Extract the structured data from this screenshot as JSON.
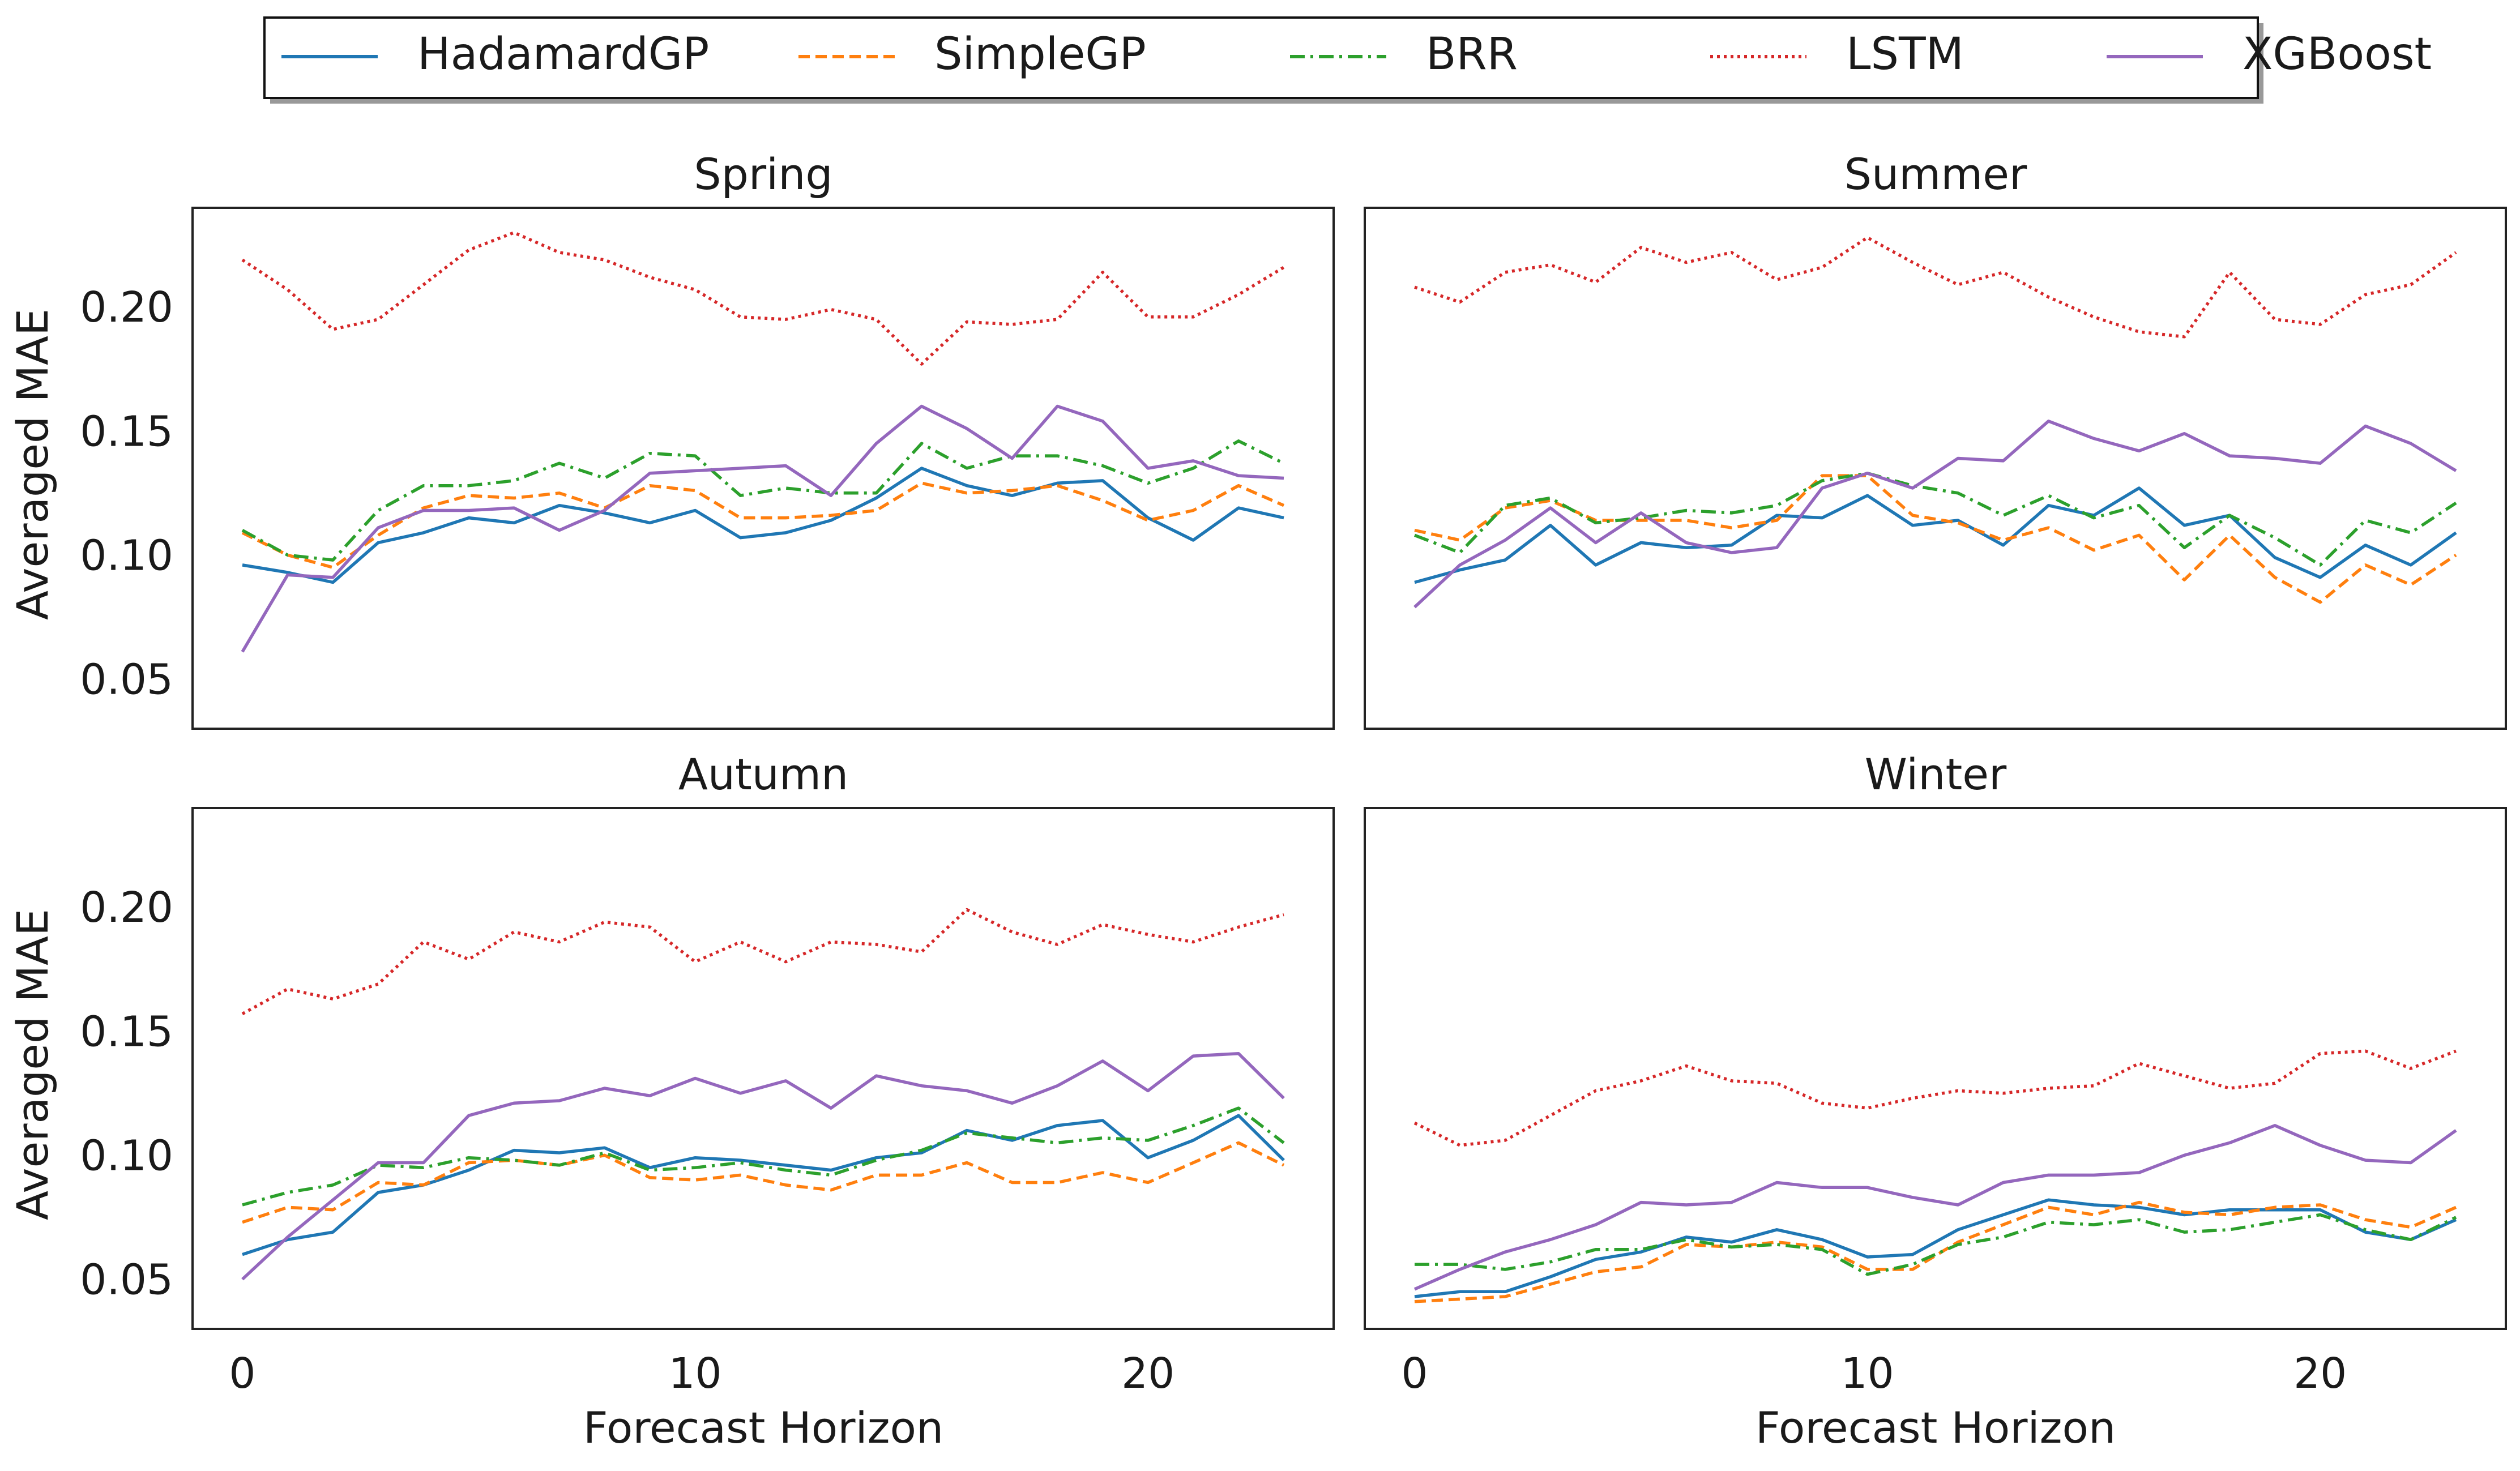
{
  "chart_data": {
    "type": "line",
    "x": [
      0,
      1,
      2,
      3,
      4,
      5,
      6,
      7,
      8,
      9,
      10,
      11,
      12,
      13,
      14,
      15,
      16,
      17,
      18,
      19,
      20,
      21,
      22,
      23
    ],
    "xlim": [
      -1.1,
      24.1
    ],
    "xticks": [
      0,
      10,
      20
    ],
    "ylim": [
      0.03,
      0.24
    ],
    "yticks": [
      0.05,
      0.1,
      0.15,
      0.2
    ],
    "ytick_labels": [
      "0.05",
      "0.10",
      "0.15",
      "0.20"
    ],
    "xlabel": "Forecast Horizon",
    "ylabel": "Averaged MAE",
    "legend_position": "top-center",
    "legend": [
      {
        "name": "HadamardGP",
        "color": "#1f77b4",
        "dash": "solid"
      },
      {
        "name": "SimpleGP",
        "color": "#ff7f0e",
        "dash": "dashed"
      },
      {
        "name": "BRR",
        "color": "#2ca02c",
        "dash": "dashdot"
      },
      {
        "name": "LSTM",
        "color": "#d62728",
        "dash": "dotted"
      },
      {
        "name": "XGBoost",
        "color": "#9467bd",
        "dash": "solid"
      }
    ],
    "panels": [
      {
        "title": "Spring",
        "series": [
          {
            "name": "HadamardGP",
            "values": [
              0.096,
              0.093,
              0.089,
              0.105,
              0.109,
              0.115,
              0.113,
              0.12,
              0.117,
              0.113,
              0.118,
              0.107,
              0.109,
              0.114,
              0.123,
              0.135,
              0.128,
              0.124,
              0.129,
              0.13,
              0.115,
              0.106,
              0.119,
              0.115
            ]
          },
          {
            "name": "SimpleGP",
            "values": [
              0.109,
              0.1,
              0.095,
              0.108,
              0.119,
              0.124,
              0.123,
              0.125,
              0.119,
              0.128,
              0.126,
              0.115,
              0.115,
              0.116,
              0.118,
              0.129,
              0.125,
              0.126,
              0.128,
              0.122,
              0.114,
              0.118,
              0.128,
              0.12
            ]
          },
          {
            "name": "BRR",
            "values": [
              0.11,
              0.1,
              0.098,
              0.118,
              0.128,
              0.128,
              0.13,
              0.137,
              0.131,
              0.141,
              0.14,
              0.124,
              0.127,
              0.125,
              0.125,
              0.145,
              0.135,
              0.14,
              0.14,
              0.136,
              0.129,
              0.135,
              0.146,
              0.137
            ]
          },
          {
            "name": "LSTM",
            "values": [
              0.219,
              0.207,
              0.191,
              0.195,
              0.209,
              0.223,
              0.23,
              0.222,
              0.219,
              0.212,
              0.207,
              0.196,
              0.195,
              0.199,
              0.195,
              0.177,
              0.194,
              0.193,
              0.195,
              0.214,
              0.196,
              0.196,
              0.205,
              0.216
            ]
          },
          {
            "name": "XGBoost",
            "values": [
              0.061,
              0.092,
              0.091,
              0.111,
              0.118,
              0.118,
              0.119,
              0.11,
              0.118,
              0.133,
              0.134,
              0.135,
              0.136,
              0.124,
              0.145,
              0.16,
              0.151,
              0.139,
              0.16,
              0.154,
              0.135,
              0.138,
              0.132,
              0.131
            ]
          }
        ]
      },
      {
        "title": "Summer",
        "series": [
          {
            "name": "HadamardGP",
            "values": [
              0.089,
              0.094,
              0.098,
              0.112,
              0.096,
              0.105,
              0.103,
              0.104,
              0.116,
              0.115,
              0.124,
              0.112,
              0.114,
              0.104,
              0.12,
              0.116,
              0.127,
              0.112,
              0.116,
              0.099,
              0.091,
              0.104,
              0.096,
              0.109
            ]
          },
          {
            "name": "SimpleGP",
            "values": [
              0.11,
              0.106,
              0.119,
              0.122,
              0.114,
              0.114,
              0.114,
              0.111,
              0.114,
              0.132,
              0.132,
              0.116,
              0.113,
              0.106,
              0.111,
              0.102,
              0.108,
              0.09,
              0.108,
              0.091,
              0.081,
              0.096,
              0.088,
              0.1
            ]
          },
          {
            "name": "BRR",
            "values": [
              0.108,
              0.101,
              0.12,
              0.123,
              0.113,
              0.115,
              0.118,
              0.117,
              0.12,
              0.13,
              0.133,
              0.128,
              0.125,
              0.116,
              0.124,
              0.115,
              0.12,
              0.103,
              0.116,
              0.107,
              0.096,
              0.114,
              0.109,
              0.121
            ]
          },
          {
            "name": "LSTM",
            "values": [
              0.208,
              0.202,
              0.214,
              0.217,
              0.21,
              0.224,
              0.218,
              0.222,
              0.211,
              0.216,
              0.228,
              0.218,
              0.209,
              0.214,
              0.204,
              0.196,
              0.19,
              0.188,
              0.214,
              0.195,
              0.193,
              0.205,
              0.209,
              0.222
            ]
          },
          {
            "name": "XGBoost",
            "values": [
              0.079,
              0.096,
              0.106,
              0.119,
              0.105,
              0.117,
              0.105,
              0.101,
              0.103,
              0.127,
              0.133,
              0.127,
              0.139,
              0.138,
              0.154,
              0.147,
              0.142,
              0.149,
              0.14,
              0.139,
              0.137,
              0.152,
              0.145,
              0.134
            ]
          }
        ]
      },
      {
        "title": "Autumn",
        "series": [
          {
            "name": "HadamardGP",
            "values": [
              0.06,
              0.066,
              0.069,
              0.085,
              0.088,
              0.094,
              0.102,
              0.101,
              0.103,
              0.095,
              0.099,
              0.098,
              0.096,
              0.094,
              0.099,
              0.101,
              0.11,
              0.106,
              0.112,
              0.114,
              0.099,
              0.106,
              0.116,
              0.098
            ]
          },
          {
            "name": "SimpleGP",
            "values": [
              0.073,
              0.079,
              0.078,
              0.089,
              0.088,
              0.097,
              0.098,
              0.096,
              0.1,
              0.091,
              0.09,
              0.092,
              0.088,
              0.086,
              0.092,
              0.092,
              0.097,
              0.089,
              0.089,
              0.093,
              0.089,
              0.097,
              0.105,
              0.096
            ]
          },
          {
            "name": "BRR",
            "values": [
              0.08,
              0.085,
              0.088,
              0.096,
              0.095,
              0.099,
              0.098,
              0.096,
              0.101,
              0.094,
              0.095,
              0.097,
              0.094,
              0.092,
              0.098,
              0.102,
              0.109,
              0.107,
              0.105,
              0.107,
              0.106,
              0.112,
              0.119,
              0.105
            ]
          },
          {
            "name": "LSTM",
            "values": [
              0.157,
              0.167,
              0.163,
              0.169,
              0.186,
              0.179,
              0.19,
              0.186,
              0.194,
              0.192,
              0.178,
              0.186,
              0.178,
              0.186,
              0.185,
              0.182,
              0.199,
              0.19,
              0.185,
              0.193,
              0.189,
              0.186,
              0.192,
              0.197
            ]
          },
          {
            "name": "XGBoost",
            "values": [
              0.05,
              0.067,
              0.082,
              0.097,
              0.097,
              0.116,
              0.121,
              0.122,
              0.127,
              0.124,
              0.131,
              0.125,
              0.13,
              0.119,
              0.132,
              0.128,
              0.126,
              0.121,
              0.128,
              0.138,
              0.126,
              0.14,
              0.141,
              0.123
            ]
          }
        ]
      },
      {
        "title": "Winter",
        "series": [
          {
            "name": "HadamardGP",
            "values": [
              0.043,
              0.045,
              0.045,
              0.051,
              0.058,
              0.061,
              0.067,
              0.065,
              0.07,
              0.066,
              0.059,
              0.06,
              0.07,
              0.076,
              0.082,
              0.08,
              0.079,
              0.076,
              0.078,
              0.078,
              0.078,
              0.069,
              0.066,
              0.074
            ]
          },
          {
            "name": "SimpleGP",
            "values": [
              0.041,
              0.042,
              0.043,
              0.048,
              0.053,
              0.055,
              0.064,
              0.063,
              0.065,
              0.063,
              0.054,
              0.054,
              0.065,
              0.072,
              0.079,
              0.076,
              0.081,
              0.077,
              0.076,
              0.079,
              0.08,
              0.074,
              0.071,
              0.079
            ]
          },
          {
            "name": "BRR",
            "values": [
              0.056,
              0.056,
              0.054,
              0.057,
              0.062,
              0.062,
              0.066,
              0.063,
              0.064,
              0.062,
              0.052,
              0.056,
              0.064,
              0.067,
              0.073,
              0.072,
              0.074,
              0.069,
              0.07,
              0.073,
              0.076,
              0.07,
              0.066,
              0.075
            ]
          },
          {
            "name": "LSTM",
            "values": [
              0.113,
              0.104,
              0.106,
              0.116,
              0.126,
              0.13,
              0.136,
              0.13,
              0.129,
              0.121,
              0.119,
              0.123,
              0.126,
              0.125,
              0.127,
              0.128,
              0.137,
              0.132,
              0.127,
              0.129,
              0.141,
              0.142,
              0.135,
              0.142
            ]
          },
          {
            "name": "XGBoost",
            "values": [
              0.046,
              0.054,
              0.061,
              0.066,
              0.072,
              0.081,
              0.08,
              0.081,
              0.089,
              0.087,
              0.087,
              0.083,
              0.08,
              0.089,
              0.092,
              0.092,
              0.093,
              0.1,
              0.105,
              0.112,
              0.104,
              0.098,
              0.097,
              0.11
            ]
          }
        ]
      }
    ]
  }
}
